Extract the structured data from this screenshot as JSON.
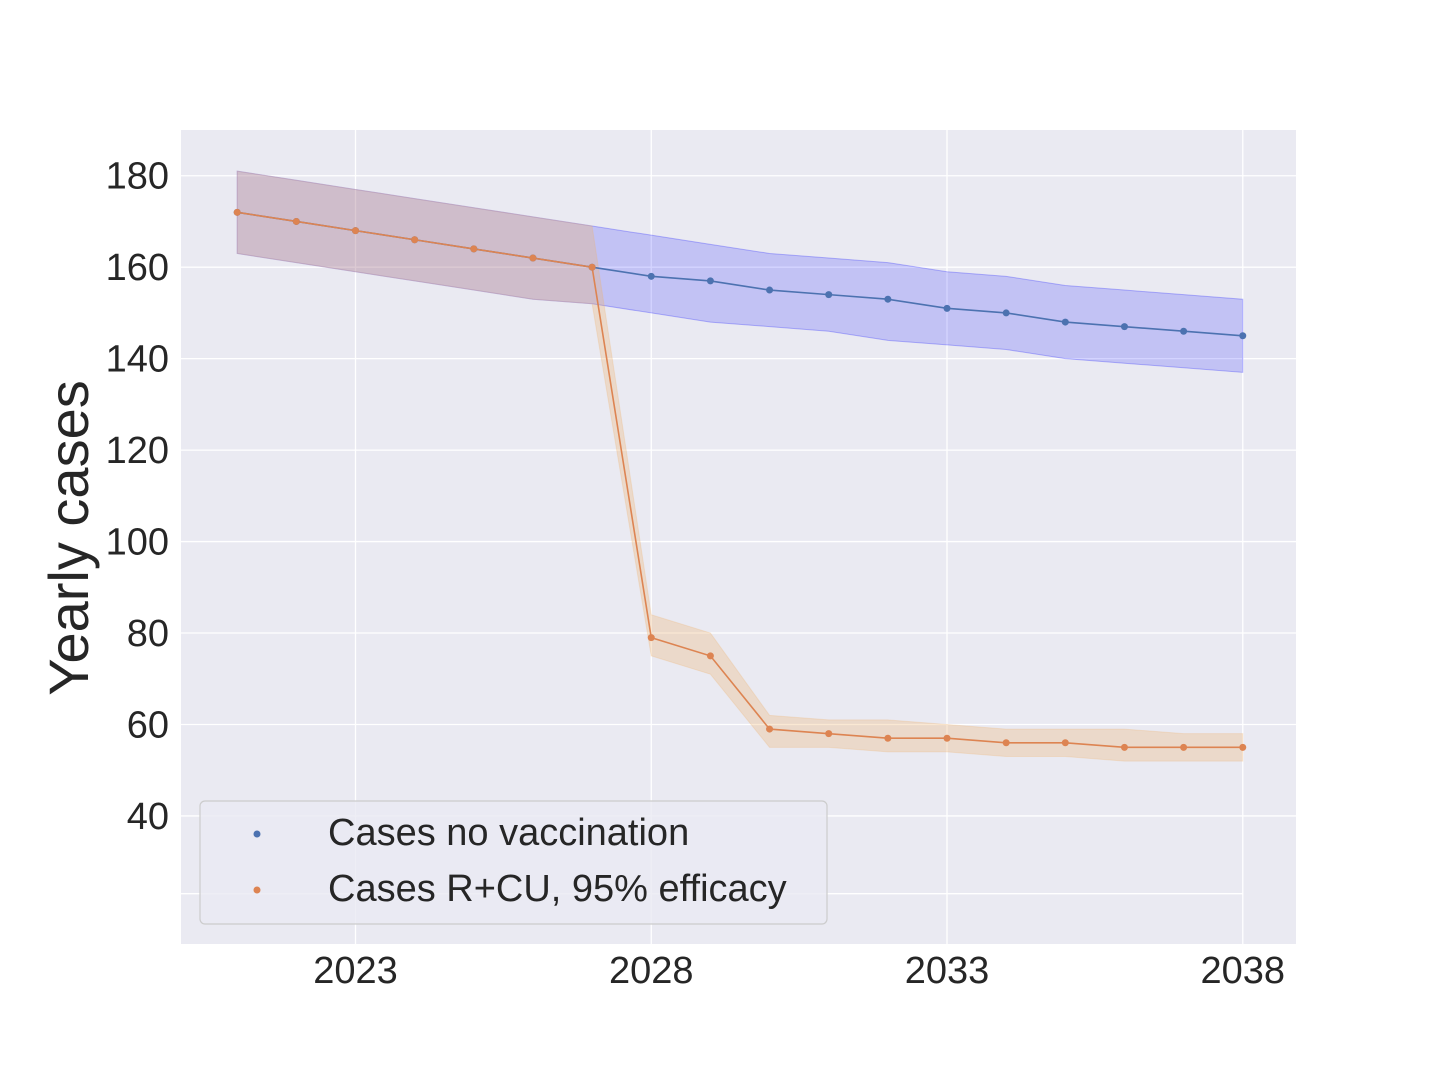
{
  "chart_data": {
    "type": "line",
    "title": "",
    "xlabel": "",
    "ylabel": "Yearly cases",
    "x": [
      2021,
      2022,
      2023,
      2024,
      2025,
      2026,
      2027,
      2028,
      2029,
      2030,
      2031,
      2032,
      2033,
      2034,
      2035,
      2036,
      2037,
      2038
    ],
    "xticks": [
      2023,
      2028,
      2033,
      2038
    ],
    "yticks": [
      40,
      60,
      80,
      100,
      120,
      140,
      160,
      180
    ],
    "xlim": [
      2020.05,
      2038.9
    ],
    "ylim": [
      12,
      190
    ],
    "grid": true,
    "legend_position": "lower-left",
    "series": [
      {
        "name": "Cases no vaccination",
        "color": "#4c72b0",
        "band_color": "#0000ff",
        "values": [
          172,
          170,
          168,
          166,
          164,
          162,
          160,
          158,
          157,
          155,
          154,
          153,
          151,
          150,
          148,
          147,
          146,
          145
        ],
        "lower": [
          163,
          161,
          159,
          157,
          155,
          153,
          152,
          150,
          148,
          147,
          146,
          144,
          143,
          142,
          140,
          139,
          138,
          137
        ],
        "upper": [
          181,
          179,
          177,
          175,
          173,
          171,
          169,
          167,
          165,
          163,
          162,
          161,
          159,
          158,
          156,
          155,
          154,
          153
        ]
      },
      {
        "name": "Cases R+CU, 95% efficacy",
        "color": "#dd8452",
        "band_color": "#f0b46e",
        "x_start": 2021,
        "values": [
          172,
          170,
          168,
          166,
          164,
          162,
          160,
          79,
          75,
          59,
          58,
          57,
          57,
          56,
          56,
          55,
          55,
          55
        ],
        "lower": [
          163,
          161,
          159,
          157,
          155,
          153,
          152,
          75,
          71,
          55,
          55,
          54,
          54,
          53,
          53,
          52,
          52,
          52
        ],
        "upper": [
          181,
          179,
          177,
          175,
          173,
          171,
          169,
          84,
          80,
          62,
          61,
          61,
          60,
          59,
          59,
          59,
          58,
          58
        ]
      }
    ]
  }
}
